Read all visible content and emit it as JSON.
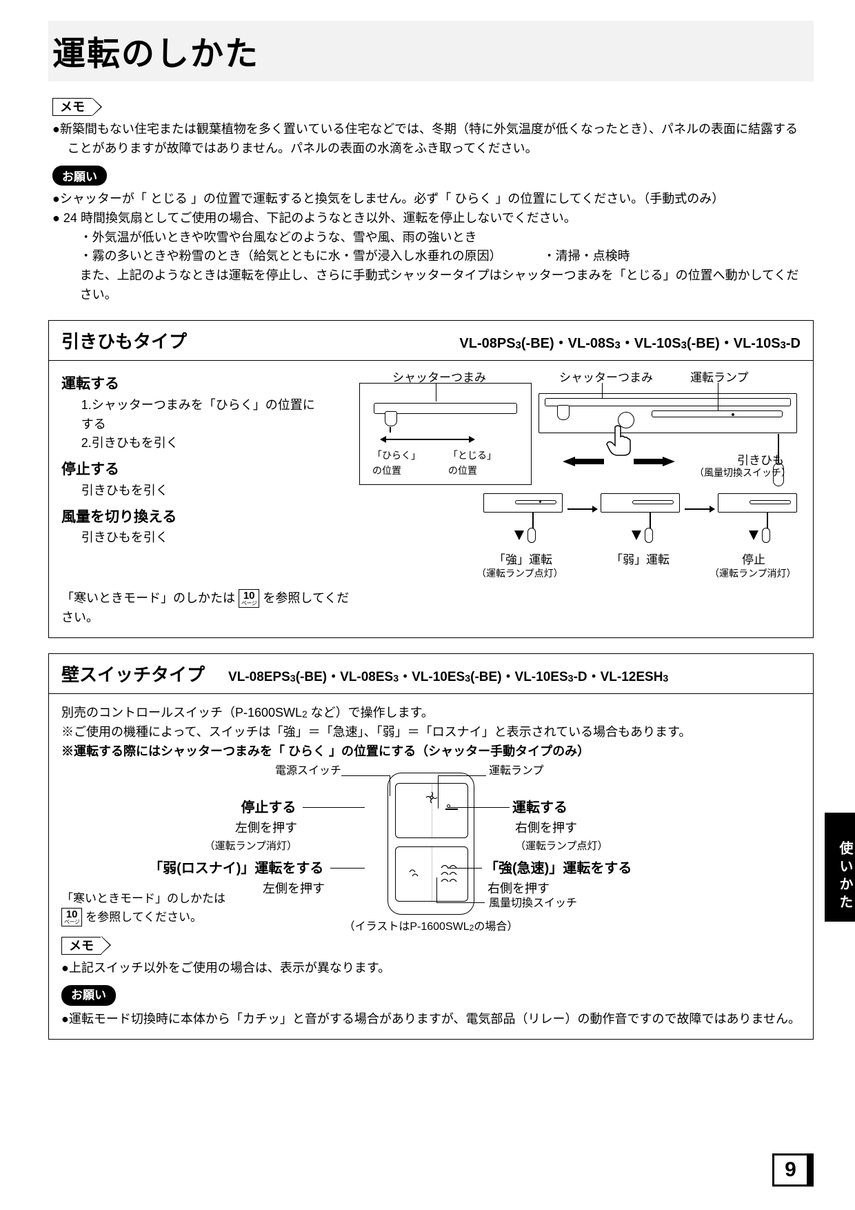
{
  "page_title": "運転のしかた",
  "memo_label": "メモ",
  "memo_body": "●新築間もない住宅または観葉植物を多く置いている住宅などでは、冬期（特に外気温度が低くなったとき）、パネルの表面に結露することがありますが故障ではありません。パネルの表面の水滴をふき取ってください。",
  "request_label": "お願い",
  "request_line1": "●シャッターが「 とじる 」の位置で運転すると換気をしません。必ず「 ひらく 」の位置にしてください。（手動式のみ）",
  "request_line2": "● 24 時間換気扇としてご使用の場合、下記のようなとき以外、運転を停止しないでください。",
  "request_line3": "・外気温が低いときや吹雪や台風などのような、雪や風、雨の強いとき",
  "request_line4a": "・霧の多いときや粉雪のとき（給気とともに水・雪が浸入し水垂れの原因）",
  "request_line4b": "・清掃・点検時",
  "request_line5": "また、上記のようなときは運転を停止し、さらに手動式シャッタータイプはシャッターつまみを「とじる」の位置へ動かしてください。",
  "pull": {
    "type_title": "引きひもタイプ",
    "models_html": "VL-08PS<sub>3</sub>(-BE)・VL-08S<sub>3</sub>・VL-10S<sub>3</sub>(-BE)・VL-10S<sub>3</sub>-D",
    "run_h": "運転する",
    "run_s1": "1.シャッターつまみを「ひらく」の位置にする",
    "run_s2": "2.引きひもを引く",
    "stop_h": "停止する",
    "stop_b": "引きひもを引く",
    "vol_h": "風量を切り換える",
    "vol_b": "引きひもを引く",
    "cold_ref_pre": "「寒いときモード」のしかたは",
    "cold_ref_post": "を参照してください。",
    "diag": {
      "shutter_knob": "シャッターつまみ",
      "open_pos": "「ひらく」\nの位置",
      "close_pos": "「とじる」\nの位置",
      "lamp": "運転ランプ",
      "cord": "引きひも",
      "cord_sub": "（風量切換スイッチ）",
      "strong": "「強」運転",
      "strong_sub": "（運転ランプ点灯）",
      "weak": "「弱」運転",
      "stop": "停止",
      "stop_sub": "（運転ランプ消灯）"
    }
  },
  "wall": {
    "type_title": "壁スイッチタイプ",
    "models_html": "VL-08EPS<sub>3</sub>(-BE)・VL-08ES<sub>3</sub>・VL-10ES<sub>3</sub>(-BE)・VL-10ES<sub>3</sub>-D・VL-12ESH<sub>3</sub>",
    "intro_html": "別売のコントロールスイッチ（P-1600SWL<sub>2</sub> など）で操作します。",
    "note1": "※ご使用の機種によって、スイッチは「強」＝「急速」、「弱」＝「ロスナイ」と表示されている場合もあります。",
    "note2": "※運転する際にはシャッターつまみを「 ひらく 」の位置にする（シャッター手動タイプのみ）",
    "diag": {
      "power_sw": "電源スイッチ",
      "lamp": "運転ランプ",
      "stop_h": "停止する",
      "stop_b": "左側を押す",
      "stop_s": "（運転ランプ消灯）",
      "run_h": "運転する",
      "run_b": "右側を押す",
      "run_s": "（運転ランプ点灯）",
      "weak_h": "「弱(ロスナイ)」運転をする",
      "weak_b": "左側を押す",
      "strong_h": "「強(急速)」運転をする",
      "strong_b": "右側を押す",
      "airflow_sw": "風量切換スイッチ",
      "caption_html": "（イラストはP-1600SWL<sub>2</sub>の場合）"
    },
    "cold_ref_pre": "「寒いときモード」のしかたは",
    "cold_ref_post": "を参照してください。",
    "memo2": "●上記スイッチ以外をご使用の場合は、表示が異なります。",
    "req2": "●運転モード切換時に本体から「カチッ」と音がする場合がありますが、電気部品（リレー）の動作音ですので故障ではありません。"
  },
  "page_ref_num": "10",
  "page_ref_unit": "ページ",
  "side_tab": "使いかた",
  "page_number": "9",
  "colors": {
    "text": "#000000",
    "bg": "#ffffff",
    "title_bg": "#f2f2f2"
  }
}
